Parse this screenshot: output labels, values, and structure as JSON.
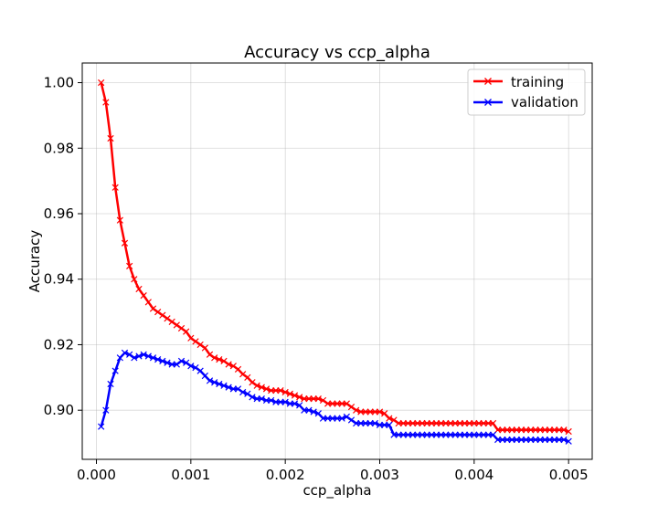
{
  "chart_data": {
    "type": "line",
    "title": "Accuracy vs ccp_alpha",
    "xlabel": "ccp_alpha",
    "ylabel": "Accuracy",
    "xlim": [
      -0.00015,
      0.00525
    ],
    "ylim": [
      0.885,
      1.006
    ],
    "xticks": [
      0.0,
      0.001,
      0.002,
      0.003,
      0.004,
      0.005
    ],
    "xtick_labels": [
      "0.000",
      "0.001",
      "0.002",
      "0.003",
      "0.004",
      "0.005"
    ],
    "yticks": [
      0.9,
      0.92,
      0.94,
      0.96,
      0.98,
      1.0
    ],
    "ytick_labels": [
      "0.90",
      "0.92",
      "0.94",
      "0.96",
      "0.98",
      "1.00"
    ],
    "grid": true,
    "legend_position": "top-right",
    "series": [
      {
        "name": "training",
        "color": "#ff0000",
        "marker": "x",
        "x": [
          5e-05,
          0.0001,
          0.00015,
          0.0002,
          0.00025,
          0.0003,
          0.00035,
          0.0004,
          0.00045,
          0.0005,
          0.00055,
          0.0006,
          0.00065,
          0.0007,
          0.00075,
          0.0008,
          0.00085,
          0.0009,
          0.00095,
          0.001,
          0.00105,
          0.0011,
          0.00115,
          0.0012,
          0.00125,
          0.0013,
          0.00135,
          0.0014,
          0.00145,
          0.0015,
          0.00155,
          0.0016,
          0.00165,
          0.0017,
          0.00175,
          0.0018,
          0.00185,
          0.0019,
          0.00195,
          0.002,
          0.00205,
          0.0021,
          0.00215,
          0.0022,
          0.00225,
          0.0023,
          0.00235,
          0.0024,
          0.00245,
          0.0025,
          0.00255,
          0.0026,
          0.00265,
          0.0027,
          0.00275,
          0.0028,
          0.00285,
          0.0029,
          0.00295,
          0.003,
          0.00305,
          0.0031,
          0.00315,
          0.0032,
          0.00325,
          0.0033,
          0.00335,
          0.0034,
          0.00345,
          0.0035,
          0.00355,
          0.0036,
          0.00365,
          0.0037,
          0.00375,
          0.0038,
          0.00385,
          0.0039,
          0.00395,
          0.004,
          0.00405,
          0.0041,
          0.00415,
          0.0042,
          0.00425,
          0.0043,
          0.00435,
          0.0044,
          0.00445,
          0.0045,
          0.00455,
          0.0046,
          0.00465,
          0.0047,
          0.00475,
          0.0048,
          0.00485,
          0.0049,
          0.00495,
          0.005
        ],
        "y": [
          1.0,
          0.994,
          0.983,
          0.968,
          0.958,
          0.951,
          0.944,
          0.94,
          0.937,
          0.935,
          0.933,
          0.931,
          0.93,
          0.929,
          0.928,
          0.927,
          0.926,
          0.925,
          0.924,
          0.922,
          0.921,
          0.92,
          0.919,
          0.917,
          0.916,
          0.9155,
          0.915,
          0.914,
          0.9135,
          0.9125,
          0.911,
          0.91,
          0.9085,
          0.9075,
          0.907,
          0.9065,
          0.906,
          0.906,
          0.906,
          0.9055,
          0.905,
          0.9045,
          0.904,
          0.9035,
          0.9035,
          0.9035,
          0.9035,
          0.903,
          0.902,
          0.902,
          0.902,
          0.902,
          0.902,
          0.901,
          0.9,
          0.8995,
          0.8995,
          0.8995,
          0.8995,
          0.8995,
          0.899,
          0.8975,
          0.897,
          0.896,
          0.896,
          0.896,
          0.896,
          0.896,
          0.896,
          0.896,
          0.896,
          0.896,
          0.896,
          0.896,
          0.896,
          0.896,
          0.896,
          0.896,
          0.896,
          0.896,
          0.896,
          0.896,
          0.896,
          0.896,
          0.894,
          0.894,
          0.894,
          0.894,
          0.894,
          0.894,
          0.894,
          0.894,
          0.894,
          0.894,
          0.894,
          0.894,
          0.894,
          0.894,
          0.894,
          0.8935
        ]
      },
      {
        "name": "validation",
        "color": "#0000ff",
        "marker": "x",
        "x": [
          5e-05,
          0.0001,
          0.00015,
          0.0002,
          0.00025,
          0.0003,
          0.00035,
          0.0004,
          0.00045,
          0.0005,
          0.00055,
          0.0006,
          0.00065,
          0.0007,
          0.00075,
          0.0008,
          0.00085,
          0.0009,
          0.00095,
          0.001,
          0.00105,
          0.0011,
          0.00115,
          0.0012,
          0.00125,
          0.0013,
          0.00135,
          0.0014,
          0.00145,
          0.0015,
          0.00155,
          0.0016,
          0.00165,
          0.0017,
          0.00175,
          0.0018,
          0.00185,
          0.0019,
          0.00195,
          0.002,
          0.00205,
          0.0021,
          0.00215,
          0.0022,
          0.00225,
          0.0023,
          0.00235,
          0.0024,
          0.00245,
          0.0025,
          0.00255,
          0.0026,
          0.00265,
          0.0027,
          0.00275,
          0.0028,
          0.00285,
          0.0029,
          0.00295,
          0.003,
          0.00305,
          0.0031,
          0.00315,
          0.0032,
          0.00325,
          0.0033,
          0.00335,
          0.0034,
          0.00345,
          0.0035,
          0.00355,
          0.0036,
          0.00365,
          0.0037,
          0.00375,
          0.0038,
          0.00385,
          0.0039,
          0.00395,
          0.004,
          0.00405,
          0.0041,
          0.00415,
          0.0042,
          0.00425,
          0.0043,
          0.00435,
          0.0044,
          0.00445,
          0.0045,
          0.00455,
          0.0046,
          0.00465,
          0.0047,
          0.00475,
          0.0048,
          0.00485,
          0.0049,
          0.00495,
          0.005
        ],
        "y": [
          0.895,
          0.9,
          0.908,
          0.912,
          0.916,
          0.9175,
          0.917,
          0.916,
          0.9165,
          0.917,
          0.9165,
          0.916,
          0.9155,
          0.915,
          0.9145,
          0.914,
          0.914,
          0.915,
          0.9145,
          0.9135,
          0.913,
          0.912,
          0.9105,
          0.909,
          0.9085,
          0.908,
          0.9075,
          0.907,
          0.9065,
          0.9065,
          0.9055,
          0.905,
          0.904,
          0.9035,
          0.9035,
          0.903,
          0.903,
          0.9025,
          0.9025,
          0.9025,
          0.902,
          0.902,
          0.9015,
          0.9,
          0.9,
          0.8995,
          0.899,
          0.8975,
          0.8975,
          0.8975,
          0.8975,
          0.8975,
          0.898,
          0.897,
          0.896,
          0.896,
          0.896,
          0.896,
          0.896,
          0.8955,
          0.8955,
          0.8955,
          0.8925,
          0.8925,
          0.8925,
          0.8925,
          0.8925,
          0.8925,
          0.8925,
          0.8925,
          0.8925,
          0.8925,
          0.8925,
          0.8925,
          0.8925,
          0.8925,
          0.8925,
          0.8925,
          0.8925,
          0.8925,
          0.8925,
          0.8925,
          0.8925,
          0.8925,
          0.891,
          0.891,
          0.891,
          0.891,
          0.891,
          0.891,
          0.891,
          0.891,
          0.891,
          0.891,
          0.891,
          0.891,
          0.891,
          0.891,
          0.891,
          0.8905
        ]
      }
    ]
  }
}
